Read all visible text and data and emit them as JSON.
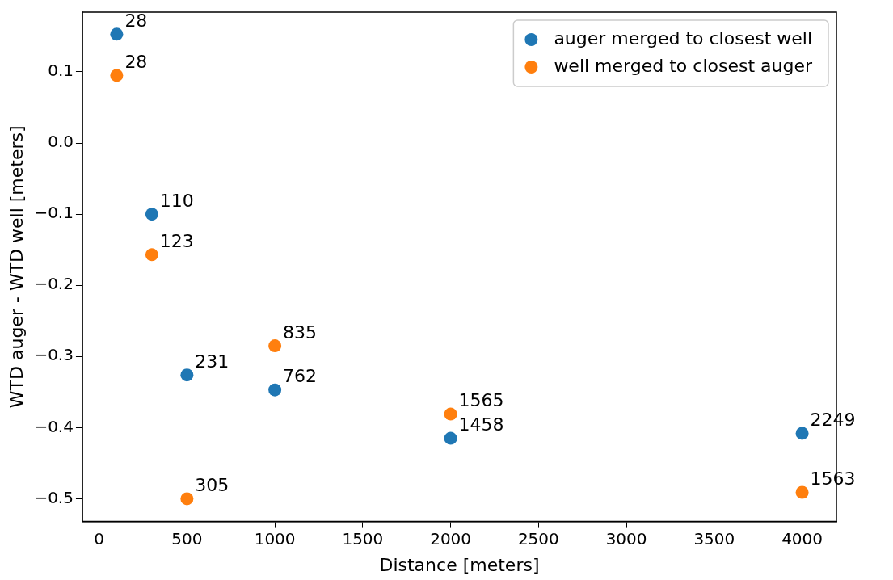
{
  "chart_data": {
    "type": "scatter",
    "xlabel": "Distance [meters]",
    "ylabel": "WTD auger - WTD well [meters]",
    "xlim": [
      -95,
      4195
    ],
    "xticks": [
      0,
      500,
      1000,
      1500,
      2000,
      2500,
      3000,
      3500,
      4000
    ],
    "ylim": [
      -0.532,
      0.184
    ],
    "yticks": [
      {
        "value": 0.1,
        "label": "0.1"
      },
      {
        "value": 0,
        "label": "0.0"
      },
      {
        "value": -0.1,
        "label": "−0.1"
      },
      {
        "value": -0.2,
        "label": "−0.2"
      },
      {
        "value": -0.3,
        "label": "−0.3"
      },
      {
        "value": -0.4,
        "label": "−0.4"
      },
      {
        "value": -0.5,
        "label": "−0.5"
      }
    ],
    "grid": false,
    "legend": "top right",
    "marker": "circle",
    "series": [
      {
        "name": "auger merged to closest well",
        "color": "#1f77b4",
        "x": [
          100,
          300,
          500,
          1000,
          2000,
          4000
        ],
        "values": [
          0.153,
          -0.1,
          -0.326,
          -0.347,
          -0.415,
          -0.408
        ]
      },
      {
        "name": "well merged to closest auger",
        "color": "#ff7f0e",
        "x": [
          100,
          300,
          500,
          1000,
          2000,
          4000
        ],
        "values": [
          0.095,
          -0.157,
          -0.5,
          -0.285,
          -0.381,
          -0.491
        ]
      }
    ],
    "annotations": [
      {
        "text": "28",
        "x": 100,
        "y": 0.153
      },
      {
        "text": "110",
        "x": 300,
        "y": -0.1
      },
      {
        "text": "231",
        "x": 500,
        "y": -0.326
      },
      {
        "text": "762",
        "x": 1000,
        "y": -0.347
      },
      {
        "text": "1458",
        "x": 2000,
        "y": -0.415
      },
      {
        "text": "2249",
        "x": 4000,
        "y": -0.408
      },
      {
        "text": "28",
        "x": 100,
        "y": 0.095
      },
      {
        "text": "123",
        "x": 300,
        "y": -0.157
      },
      {
        "text": "305",
        "x": 500,
        "y": -0.5
      },
      {
        "text": "835",
        "x": 1000,
        "y": -0.285
      },
      {
        "text": "1565",
        "x": 2000,
        "y": -0.381
      },
      {
        "text": "1563",
        "x": 4000,
        "y": -0.491
      }
    ]
  }
}
